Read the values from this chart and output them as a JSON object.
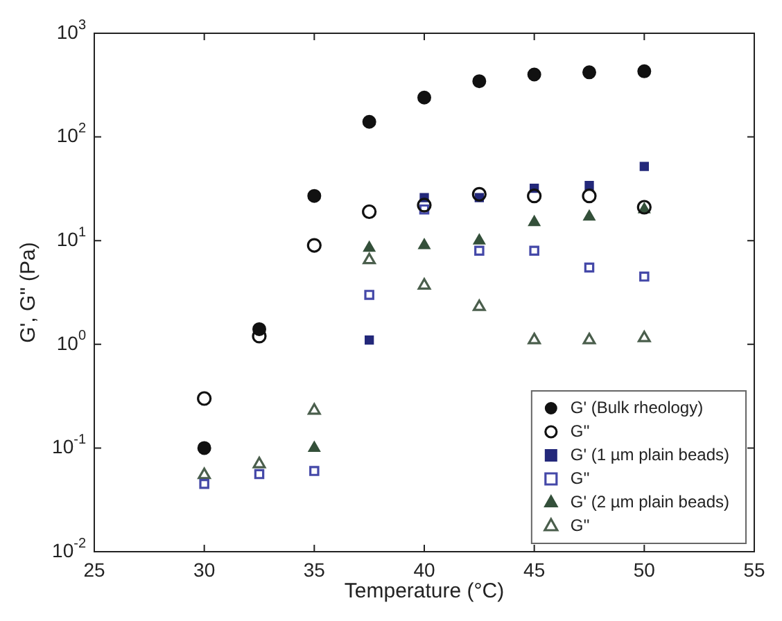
{
  "chart_data": {
    "type": "scatter",
    "xlabel": "Temperature (°C)",
    "ylabel": "G', G'' (Pa)",
    "log": "y",
    "grid": false,
    "legend": "bottom right",
    "xlim": [
      25,
      55
    ],
    "xticks": [
      25,
      30,
      35,
      40,
      45,
      50,
      55
    ],
    "ylim": [
      0.01,
      1000
    ],
    "yticks": [
      {
        "value": 0.01,
        "label": "10$^{-2}$"
      },
      {
        "value": 0.1,
        "label": "10$^{-1}$"
      },
      {
        "value": 1,
        "label": "10$^{0}$"
      },
      {
        "value": 10,
        "label": "10$^{1}$"
      },
      {
        "value": 100,
        "label": "10$^{2}$"
      },
      {
        "value": 1000,
        "label": "10$^{3}$"
      }
    ],
    "series": [
      {
        "name": "G' (Bulk rheology)",
        "color": "#111111",
        "marker": "circle",
        "x": [
          30,
          32.5,
          35,
          37.5,
          40,
          42.5,
          45,
          47.5,
          50
        ],
        "values": [
          0.1,
          1.4,
          27,
          140,
          240,
          345,
          400,
          420,
          430
        ]
      },
      {
        "name": "G''",
        "color": "#111111",
        "marker": "circle",
        "x": [
          30,
          32.5,
          35,
          37.5,
          40,
          42.5,
          45,
          47.5,
          50
        ],
        "values": [
          0.3,
          1.2,
          9,
          19,
          22,
          28,
          27,
          27,
          21
        ]
      },
      {
        "name": "G' (1 µm plain beads)",
        "color": "#23287a",
        "marker": "square",
        "x": [
          37.5,
          40,
          42.5,
          45,
          47.5,
          50
        ],
        "values": [
          1.1,
          26,
          26,
          32,
          34,
          52
        ]
      },
      {
        "name": "G''",
        "color": "#4448a8",
        "marker": "square",
        "x": [
          30,
          32.5,
          35,
          37.5,
          40,
          42.5,
          45,
          47.5,
          50
        ],
        "values": [
          0.045,
          0.056,
          0.06,
          3,
          20,
          8,
          8,
          5.5,
          4.5
        ]
      },
      {
        "name": "G' (2 µm plain beads)",
        "color": "#34503a",
        "marker": "triangle",
        "x": [
          35,
          37.5,
          40,
          42.5,
          45,
          47.5,
          50
        ],
        "values": [
          0.1,
          8.5,
          9,
          10,
          15,
          17,
          20
        ]
      },
      {
        "name": "G''",
        "color": "#4a5e4c",
        "marker": "triangle",
        "x": [
          30,
          32.5,
          35,
          37.5,
          40,
          42.5,
          45,
          47.5,
          50
        ],
        "values": [
          0.055,
          0.07,
          0.23,
          6.5,
          3.7,
          2.3,
          1.1,
          1.1,
          1.15
        ]
      }
    ]
  }
}
